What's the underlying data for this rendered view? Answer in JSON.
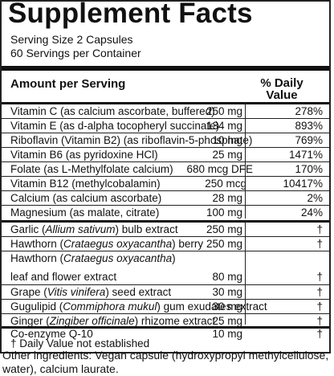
{
  "title": "Supplement Facts",
  "serving_size": "Serving Size 2 Capsules",
  "servings_per_container": "60 Servings per Container",
  "header": {
    "amount": "Amount per Serving",
    "dv_line1": "% Daily",
    "dv_line2": "Value"
  },
  "rows_group1": [
    {
      "name": "Vitamin C (as calcium ascorbate, buffered)",
      "amount": "250 mg",
      "dv": "278%"
    },
    {
      "name": "Vitamin E (as d-alpha tocopheryl succinate)",
      "amount": "134 mg",
      "dv": "893%"
    },
    {
      "name": "Riboflavin (Vitamin B2) (as riboflavin-5-phosphate)",
      "amount": "10 mg",
      "dv": "769%"
    },
    {
      "name": "Vitamin B6 (as pyridoxine HCl)",
      "amount": "25 mg",
      "dv": "1471%"
    },
    {
      "name": "Folate (as L-Methylfolate calcium)",
      "amount": "680 mcg DFE",
      "dv": "170%"
    },
    {
      "name": "Vitamin B12 (methylcobalamin)",
      "amount": "250 mcg",
      "dv": "10417%"
    },
    {
      "name": "Calcium (as calcium ascorbate)",
      "amount": "28 mg",
      "dv": "2%"
    },
    {
      "name": "Magnesium (as malate, citrate)",
      "amount": "100 mg",
      "dv": "24%"
    }
  ],
  "rows_group2": {
    "garlic": {
      "pre": "Garlic (",
      "latin": "Allium sativum",
      "post": ") bulb extract",
      "amount": "250 mg",
      "dv": "†"
    },
    "hawthorn1": {
      "pre": "Hawthorn (",
      "latin": "Crataegus oxyacantha",
      "post": ") berry",
      "amount": "250 mg",
      "dv": "†"
    },
    "hawthorn2_line1": {
      "pre": "Hawthorn (",
      "latin": "Crataegus oxyacantha",
      "post": ")"
    },
    "hawthorn2_line2": {
      "name": "leaf and flower extract",
      "amount": "80 mg",
      "dv": "†"
    },
    "grape": {
      "pre": "Grape (",
      "latin": "Vitis vinifera",
      "post": ") seed extract",
      "amount": "30 mg",
      "dv": "†"
    },
    "gugulipid": {
      "pre": "Gugulipid (",
      "latin": "Commiphora mukul",
      "post": ") gum exudates extract",
      "amount": "30 mg",
      "dv": "†"
    },
    "ginger": {
      "pre": "Ginger (",
      "latin": "Zingiber officinale",
      "post": ") rhizome extract",
      "amount": "25 mg",
      "dv": "†"
    },
    "coq10": {
      "name": "Co-enzyme Q-10",
      "amount": "10 mg",
      "dv": "†"
    }
  },
  "footnote": "† Daily Value not established",
  "other_ingredients": "Other ingredients: Vegan capsule (hydroxypropyl methylcellulose, water), calcium laurate."
}
